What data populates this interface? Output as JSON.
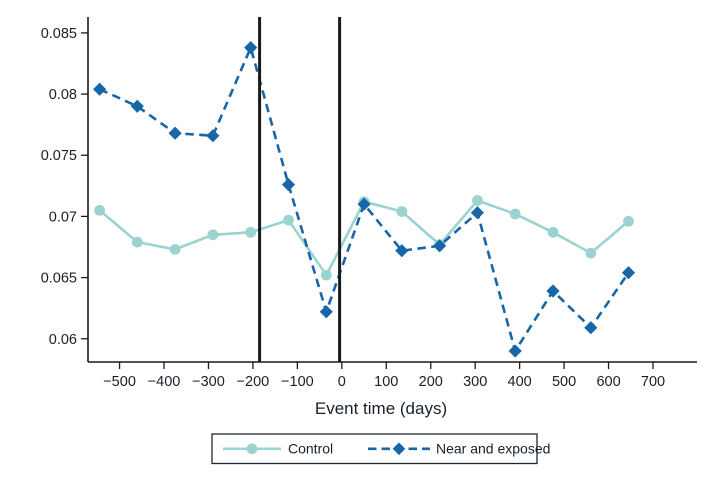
{
  "chart_data": {
    "type": "line",
    "title": "",
    "xlabel": "Event time (days)",
    "ylabel": "",
    "grid": false,
    "x": [
      -545,
      -460,
      -375,
      -290,
      -205,
      -120,
      -35,
      50,
      135,
      220,
      305,
      390,
      475,
      560,
      645
    ],
    "series": [
      {
        "name": "Control",
        "color": "#9ad3cf",
        "line_style": "solid",
        "marker": "circle",
        "values": [
          0.0705,
          0.0679,
          0.0673,
          0.0685,
          0.0687,
          0.0697,
          0.0652,
          0.0712,
          0.0704,
          0.0677,
          0.0713,
          0.0702,
          0.0687,
          0.067,
          0.0696
        ]
      },
      {
        "name": "Near and exposed",
        "color": "#1766a8",
        "line_style": "dashed",
        "marker": "diamond",
        "values": [
          0.0804,
          0.079,
          0.0768,
          0.0766,
          0.0838,
          0.0726,
          0.0622,
          0.071,
          0.0672,
          0.0676,
          0.0703,
          0.059,
          0.0639,
          0.0609,
          0.0654
        ]
      }
    ],
    "vlines": {
      "x": [
        -185,
        -5
      ],
      "color": "#1a1a1a"
    },
    "x_ticks": [
      -500,
      -400,
      -300,
      -200,
      -100,
      0,
      100,
      200,
      300,
      400,
      500,
      600,
      700
    ],
    "x_tick_labels": [
      "−500",
      "−400",
      "−300",
      "−200",
      "−100",
      "0",
      "100",
      "200",
      "300",
      "400",
      "500",
      "600",
      "700"
    ],
    "y_ticks": [
      0.06,
      0.065,
      0.07,
      0.075,
      0.08,
      0.085
    ],
    "y_tick_labels": [
      "0.06",
      "0.065",
      "0.07",
      "0.075",
      "0.08",
      "0.085"
    ],
    "xlim": [
      -571,
      799
    ],
    "ylim": [
      0.0581,
      0.0863
    ],
    "legend_position": "bottom-center",
    "legend_entries": [
      "Control",
      "Near and exposed"
    ],
    "axis_color": "#1a1a1a",
    "text_color": "#17202a",
    "background_color": "#ffffff"
  }
}
